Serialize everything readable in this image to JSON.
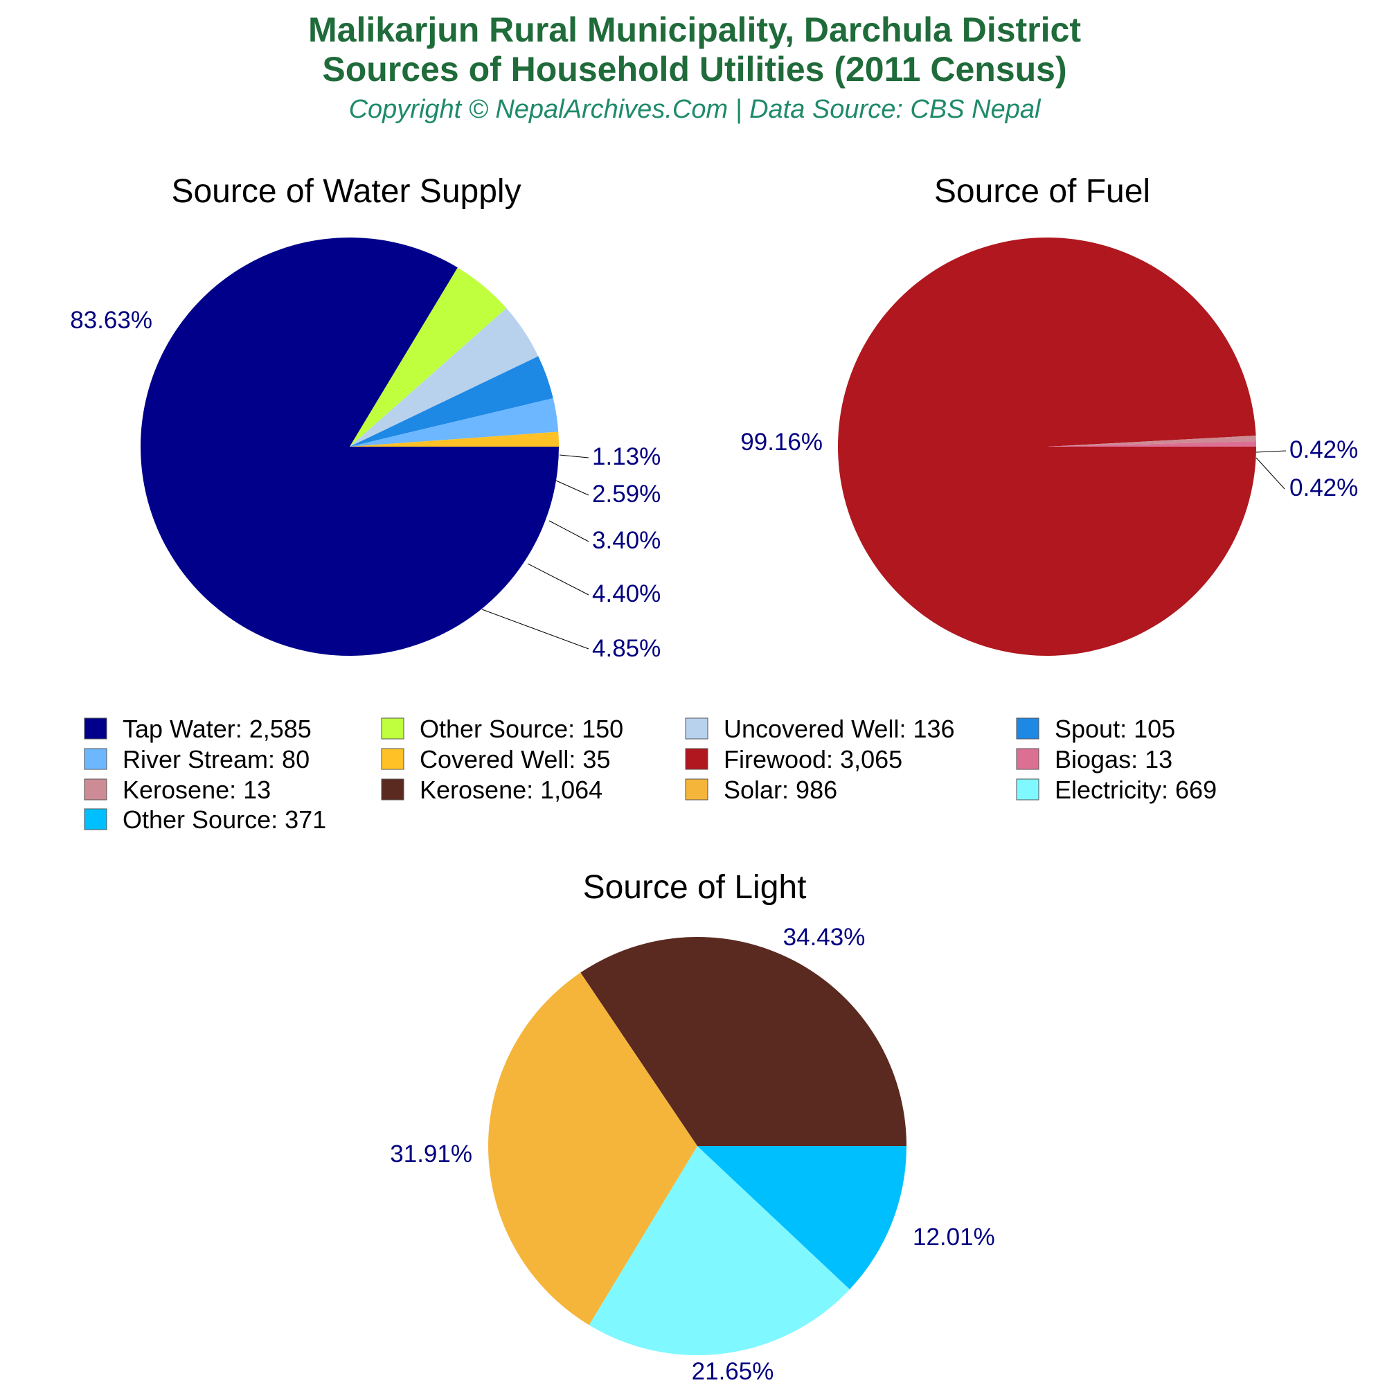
{
  "header": {
    "title_line1": "Malikarjun Rural Municipality, Darchula District",
    "title_line2": "Sources of Household Utilities (2011 Census)",
    "subtitle": "Copyright © NepalArchives.Com | Data Source: CBS Nepal"
  },
  "chart_data": [
    {
      "type": "pie",
      "title": "Source of Water Supply",
      "start_angle": 0,
      "direction": "clockwise",
      "slices": [
        {
          "label": "Tap Water",
          "value": 2585,
          "pct": "83.63%",
          "color": "#00008b"
        },
        {
          "label": "Other Source",
          "value": 150,
          "pct": "4.85%",
          "color": "#c0ff3e"
        },
        {
          "label": "Uncovered Well",
          "value": 136,
          "pct": "4.40%",
          "color": "#b8d2ee"
        },
        {
          "label": "Spout",
          "value": 105,
          "pct": "3.40%",
          "color": "#1e88e5"
        },
        {
          "label": "River Stream",
          "value": 80,
          "pct": "2.59%",
          "color": "#6cb7ff"
        },
        {
          "label": "Covered Well",
          "value": 35,
          "pct": "1.13%",
          "color": "#ffc125"
        }
      ]
    },
    {
      "type": "pie",
      "title": "Source of Fuel",
      "start_angle": 0,
      "direction": "clockwise",
      "slices": [
        {
          "label": "Firewood",
          "value": 3065,
          "pct": "99.16%",
          "color": "#b0171f"
        },
        {
          "label": "Kerosene",
          "value": 13,
          "pct": "0.42%",
          "color": "#cd8c95"
        },
        {
          "label": "Biogas",
          "value": 13,
          "pct": "0.42%",
          "color": "#db7093"
        }
      ]
    },
    {
      "type": "pie",
      "title": "Source of Light",
      "start_angle": 0,
      "direction": "counterclockwise",
      "slices": [
        {
          "label": "Kerosene",
          "value": 1064,
          "pct": "34.43%",
          "color": "#5a2a20"
        },
        {
          "label": "Solar",
          "value": 986,
          "pct": "31.91%",
          "color": "#f5b53a"
        },
        {
          "label": "Electricity",
          "value": 669,
          "pct": "21.65%",
          "color": "#7ff8ff"
        },
        {
          "label": "Other Source",
          "value": 371,
          "pct": "12.01%",
          "color": "#00bfff"
        }
      ]
    }
  ],
  "legend": [
    {
      "text": "Tap Water: 2,585",
      "color": "#00008b"
    },
    {
      "text": "Other Source: 150",
      "color": "#c0ff3e"
    },
    {
      "text": "Uncovered Well: 136",
      "color": "#b8d2ee"
    },
    {
      "text": "Spout: 105",
      "color": "#1e88e5"
    },
    {
      "text": "River Stream: 80",
      "color": "#6cb7ff"
    },
    {
      "text": "Covered Well: 35",
      "color": "#ffc125"
    },
    {
      "text": "Firewood: 3,065",
      "color": "#b0171f"
    },
    {
      "text": "Biogas: 13",
      "color": "#db7093"
    },
    {
      "text": "Kerosene: 13",
      "color": "#cd8c95"
    },
    {
      "text": "Kerosene: 1,064",
      "color": "#5a2a20"
    },
    {
      "text": "Solar: 986",
      "color": "#f5b53a"
    },
    {
      "text": "Electricity: 669",
      "color": "#7ff8ff"
    },
    {
      "text": "Other Source: 371",
      "color": "#00bfff"
    }
  ]
}
